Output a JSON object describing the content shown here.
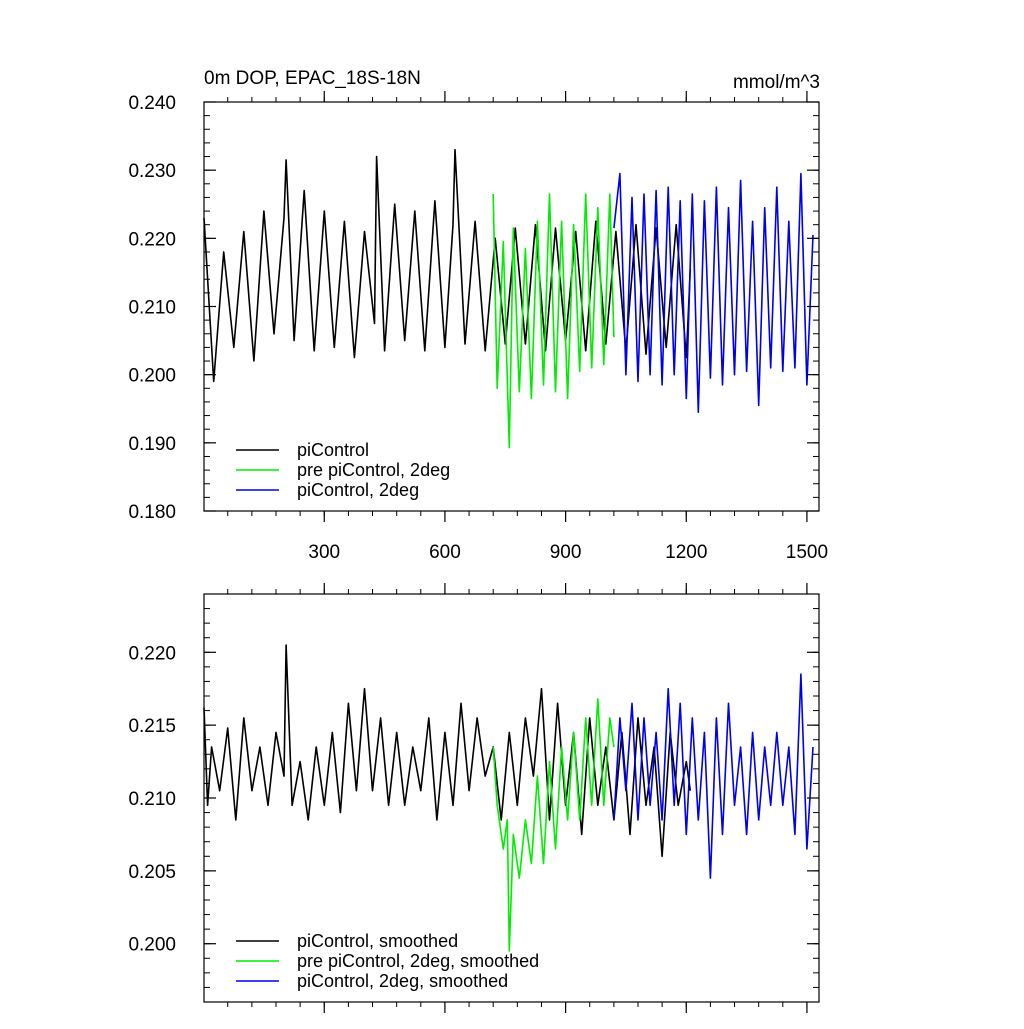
{
  "figure": {
    "title": "0m DOP, EPAC_18S-18N",
    "units": "mmol/m^3"
  },
  "chart_data": [
    {
      "type": "line",
      "title": "0m DOP, EPAC_18S-18N",
      "units_label": "mmol/m^3",
      "xlim": [
        1,
        1530
      ],
      "ylim": [
        0.18,
        0.24
      ],
      "x_ticks": [
        300,
        600,
        900,
        1200,
        1500
      ],
      "y_ticks": [
        0.18,
        0.19,
        0.2,
        0.21,
        0.22,
        0.23,
        0.24
      ],
      "y_tick_labels": [
        "0.180",
        "0.190",
        "0.200",
        "0.210",
        "0.220",
        "0.230",
        "0.240"
      ],
      "x_tick_labels": [
        "300",
        "600",
        "900",
        "1200",
        "1500"
      ],
      "legend_position": "bottom-left",
      "series": [
        {
          "name": "piControl",
          "color": "#000000",
          "x": [
            1,
            25,
            50,
            75,
            100,
            125,
            150,
            175,
            200,
            205,
            225,
            250,
            275,
            300,
            325,
            350,
            375,
            400,
            425,
            430,
            450,
            475,
            500,
            525,
            550,
            575,
            600,
            620,
            625,
            650,
            675,
            700,
            725,
            750,
            775,
            800,
            825,
            850,
            875,
            900,
            925,
            950,
            975,
            1000,
            1025,
            1050,
            1075,
            1100,
            1125,
            1150,
            1175,
            1200,
            1210
          ],
          "y": [
            0.223,
            0.199,
            0.218,
            0.204,
            0.221,
            0.202,
            0.224,
            0.206,
            0.223,
            0.2315,
            0.205,
            0.227,
            0.2035,
            0.224,
            0.204,
            0.2225,
            0.2025,
            0.221,
            0.2075,
            0.232,
            0.2035,
            0.225,
            0.205,
            0.224,
            0.2035,
            0.2255,
            0.204,
            0.222,
            0.233,
            0.2045,
            0.2225,
            0.2035,
            0.22,
            0.2045,
            0.2215,
            0.2045,
            0.222,
            0.2035,
            0.2215,
            0.205,
            0.221,
            0.2035,
            0.2225,
            0.2045,
            0.221,
            0.2035,
            0.222,
            0.203,
            0.2215,
            0.204,
            0.222,
            0.2025,
            0.2155
          ]
        },
        {
          "name": "pre piControl, 2deg",
          "color": "#00ee00",
          "x": [
            720,
            730,
            745,
            760,
            770,
            785,
            800,
            815,
            830,
            845,
            860,
            875,
            890,
            905,
            920,
            935,
            950,
            965,
            980,
            995,
            1010,
            1020
          ],
          "y": [
            0.2265,
            0.198,
            0.2195,
            0.1893,
            0.2215,
            0.1975,
            0.2185,
            0.1965,
            0.2225,
            0.1985,
            0.2265,
            0.1975,
            0.2225,
            0.1965,
            0.222,
            0.2005,
            0.2265,
            0.201,
            0.2245,
            0.2015,
            0.2265,
            0.2055
          ]
        },
        {
          "name": "piControl, 2deg",
          "color": "#0000ee",
          "x": [
            1020,
            1035,
            1050,
            1065,
            1080,
            1095,
            1110,
            1125,
            1140,
            1155,
            1170,
            1185,
            1200,
            1215,
            1230,
            1245,
            1260,
            1275,
            1290,
            1305,
            1320,
            1335,
            1350,
            1365,
            1380,
            1395,
            1410,
            1425,
            1440,
            1455,
            1470,
            1485,
            1500,
            1515
          ],
          "y": [
            0.2215,
            0.2295,
            0.2,
            0.226,
            0.199,
            0.2265,
            0.2,
            0.227,
            0.1985,
            0.2275,
            0.2,
            0.2255,
            0.1965,
            0.2265,
            0.1945,
            0.2255,
            0.1995,
            0.2275,
            0.1985,
            0.2245,
            0.2,
            0.2285,
            0.2005,
            0.2225,
            0.1955,
            0.2245,
            0.201,
            0.2275,
            0.2005,
            0.2225,
            0.201,
            0.2295,
            0.1985,
            0.2205
          ]
        }
      ]
    },
    {
      "type": "line",
      "xlim": [
        1,
        1530
      ],
      "ylim": [
        0.196,
        0.224
      ],
      "x_ticks": [
        300,
        600,
        900,
        1200,
        1500
      ],
      "y_ticks": [
        0.2,
        0.205,
        0.21,
        0.215,
        0.22
      ],
      "y_tick_labels": [
        "0.200",
        "0.205",
        "0.210",
        "0.215",
        "0.220"
      ],
      "legend_position": "bottom-left",
      "series": [
        {
          "name": "piControl, smoothed",
          "color": "#000000",
          "x": [
            1,
            10,
            20,
            40,
            60,
            80,
            100,
            120,
            140,
            160,
            180,
            200,
            205,
            220,
            240,
            260,
            280,
            300,
            320,
            340,
            360,
            380,
            400,
            420,
            440,
            460,
            480,
            500,
            520,
            540,
            560,
            580,
            600,
            620,
            640,
            660,
            680,
            700,
            720,
            740,
            760,
            780,
            800,
            820,
            840,
            860,
            880,
            900,
            920,
            940,
            960,
            980,
            1000,
            1020,
            1040,
            1060,
            1080,
            1100,
            1120,
            1140,
            1160,
            1180,
            1200,
            1210
          ],
          "y": [
            0.2162,
            0.2095,
            0.2135,
            0.2105,
            0.2148,
            0.2085,
            0.2155,
            0.2105,
            0.2135,
            0.2095,
            0.2145,
            0.2115,
            0.2205,
            0.2095,
            0.2125,
            0.2085,
            0.2135,
            0.2095,
            0.2145,
            0.209,
            0.2165,
            0.2105,
            0.2175,
            0.2105,
            0.2155,
            0.2095,
            0.2145,
            0.2095,
            0.2135,
            0.2105,
            0.2155,
            0.2085,
            0.2145,
            0.2095,
            0.2165,
            0.2105,
            0.2155,
            0.2115,
            0.2135,
            0.2085,
            0.2145,
            0.2095,
            0.2155,
            0.2115,
            0.2175,
            0.2085,
            0.2165,
            0.2095,
            0.2145,
            0.2075,
            0.2155,
            0.2095,
            0.2135,
            0.2085,
            0.2145,
            0.2075,
            0.2155,
            0.2095,
            0.2135,
            0.206,
            0.2145,
            0.2095,
            0.2125,
            0.2105
          ]
        },
        {
          "name": "pre piControl, 2deg, smoothed",
          "color": "#00ee00",
          "x": [
            720,
            730,
            745,
            755,
            760,
            770,
            785,
            800,
            815,
            830,
            845,
            860,
            875,
            890,
            905,
            920,
            935,
            950,
            965,
            980,
            995,
            1010,
            1020
          ],
          "y": [
            0.2135,
            0.2095,
            0.2065,
            0.2085,
            0.1995,
            0.2075,
            0.2045,
            0.2085,
            0.2055,
            0.2115,
            0.2055,
            0.2125,
            0.2065,
            0.2135,
            0.2085,
            0.2145,
            0.2085,
            0.2155,
            0.2095,
            0.2168,
            0.2095,
            0.2155,
            0.2135
          ]
        },
        {
          "name": "piControl, 2deg, smoothed",
          "color": "#0000ee",
          "x": [
            1020,
            1035,
            1050,
            1065,
            1080,
            1095,
            1110,
            1125,
            1140,
            1155,
            1170,
            1185,
            1200,
            1215,
            1230,
            1245,
            1260,
            1275,
            1290,
            1305,
            1320,
            1335,
            1350,
            1365,
            1380,
            1395,
            1410,
            1425,
            1440,
            1455,
            1470,
            1485,
            1500,
            1515
          ],
          "y": [
            0.2085,
            0.2155,
            0.2105,
            0.2165,
            0.2085,
            0.2155,
            0.2095,
            0.2145,
            0.2085,
            0.2175,
            0.2095,
            0.2165,
            0.2075,
            0.2155,
            0.2085,
            0.2145,
            0.2045,
            0.2155,
            0.2075,
            0.2165,
            0.2095,
            0.2135,
            0.2075,
            0.2145,
            0.2085,
            0.2135,
            0.2095,
            0.2145,
            0.2095,
            0.2135,
            0.2075,
            0.2185,
            0.2065,
            0.2135
          ]
        }
      ]
    }
  ]
}
